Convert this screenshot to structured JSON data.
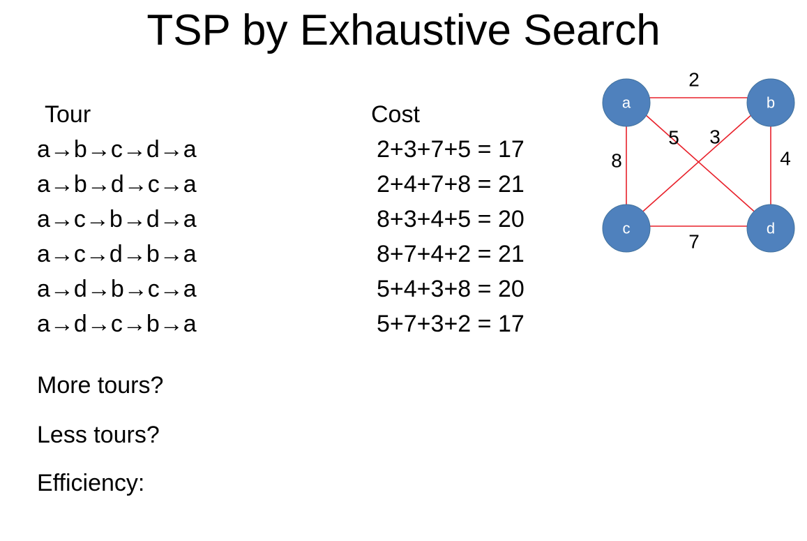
{
  "slide": {
    "title": "TSP by Exhaustive Search"
  },
  "table": {
    "tour_header": "Tour",
    "cost_header": "Cost",
    "rows": [
      {
        "tour": "a→b→c→d→a",
        "cost": "2+3+7+5 = 17"
      },
      {
        "tour": "a→b→d→c→a",
        "cost": "2+4+7+8 = 21"
      },
      {
        "tour": "a→c→b→d→a",
        "cost": "8+3+4+5 = 20"
      },
      {
        "tour": "a→c→d→b→a",
        "cost": "8+7+4+2 = 21"
      },
      {
        "tour": "a→d→b→c→a",
        "cost": "5+4+3+8 = 20"
      },
      {
        "tour": "a→d→c→b→a",
        "cost": "5+7+3+2 = 17"
      }
    ]
  },
  "questions": {
    "more_tours": "More tours?",
    "less_tours": "Less tours?",
    "efficiency": "Efficiency:"
  },
  "graph": {
    "node_color": "#4f81bd",
    "edge_color": "#e8202a",
    "nodes": {
      "a": "a",
      "b": "b",
      "c": "c",
      "d": "d"
    },
    "edges": {
      "a_b": "2",
      "a_c": "8",
      "a_d": "5",
      "b_c": "3",
      "b_d": "4",
      "c_d": "7"
    }
  }
}
